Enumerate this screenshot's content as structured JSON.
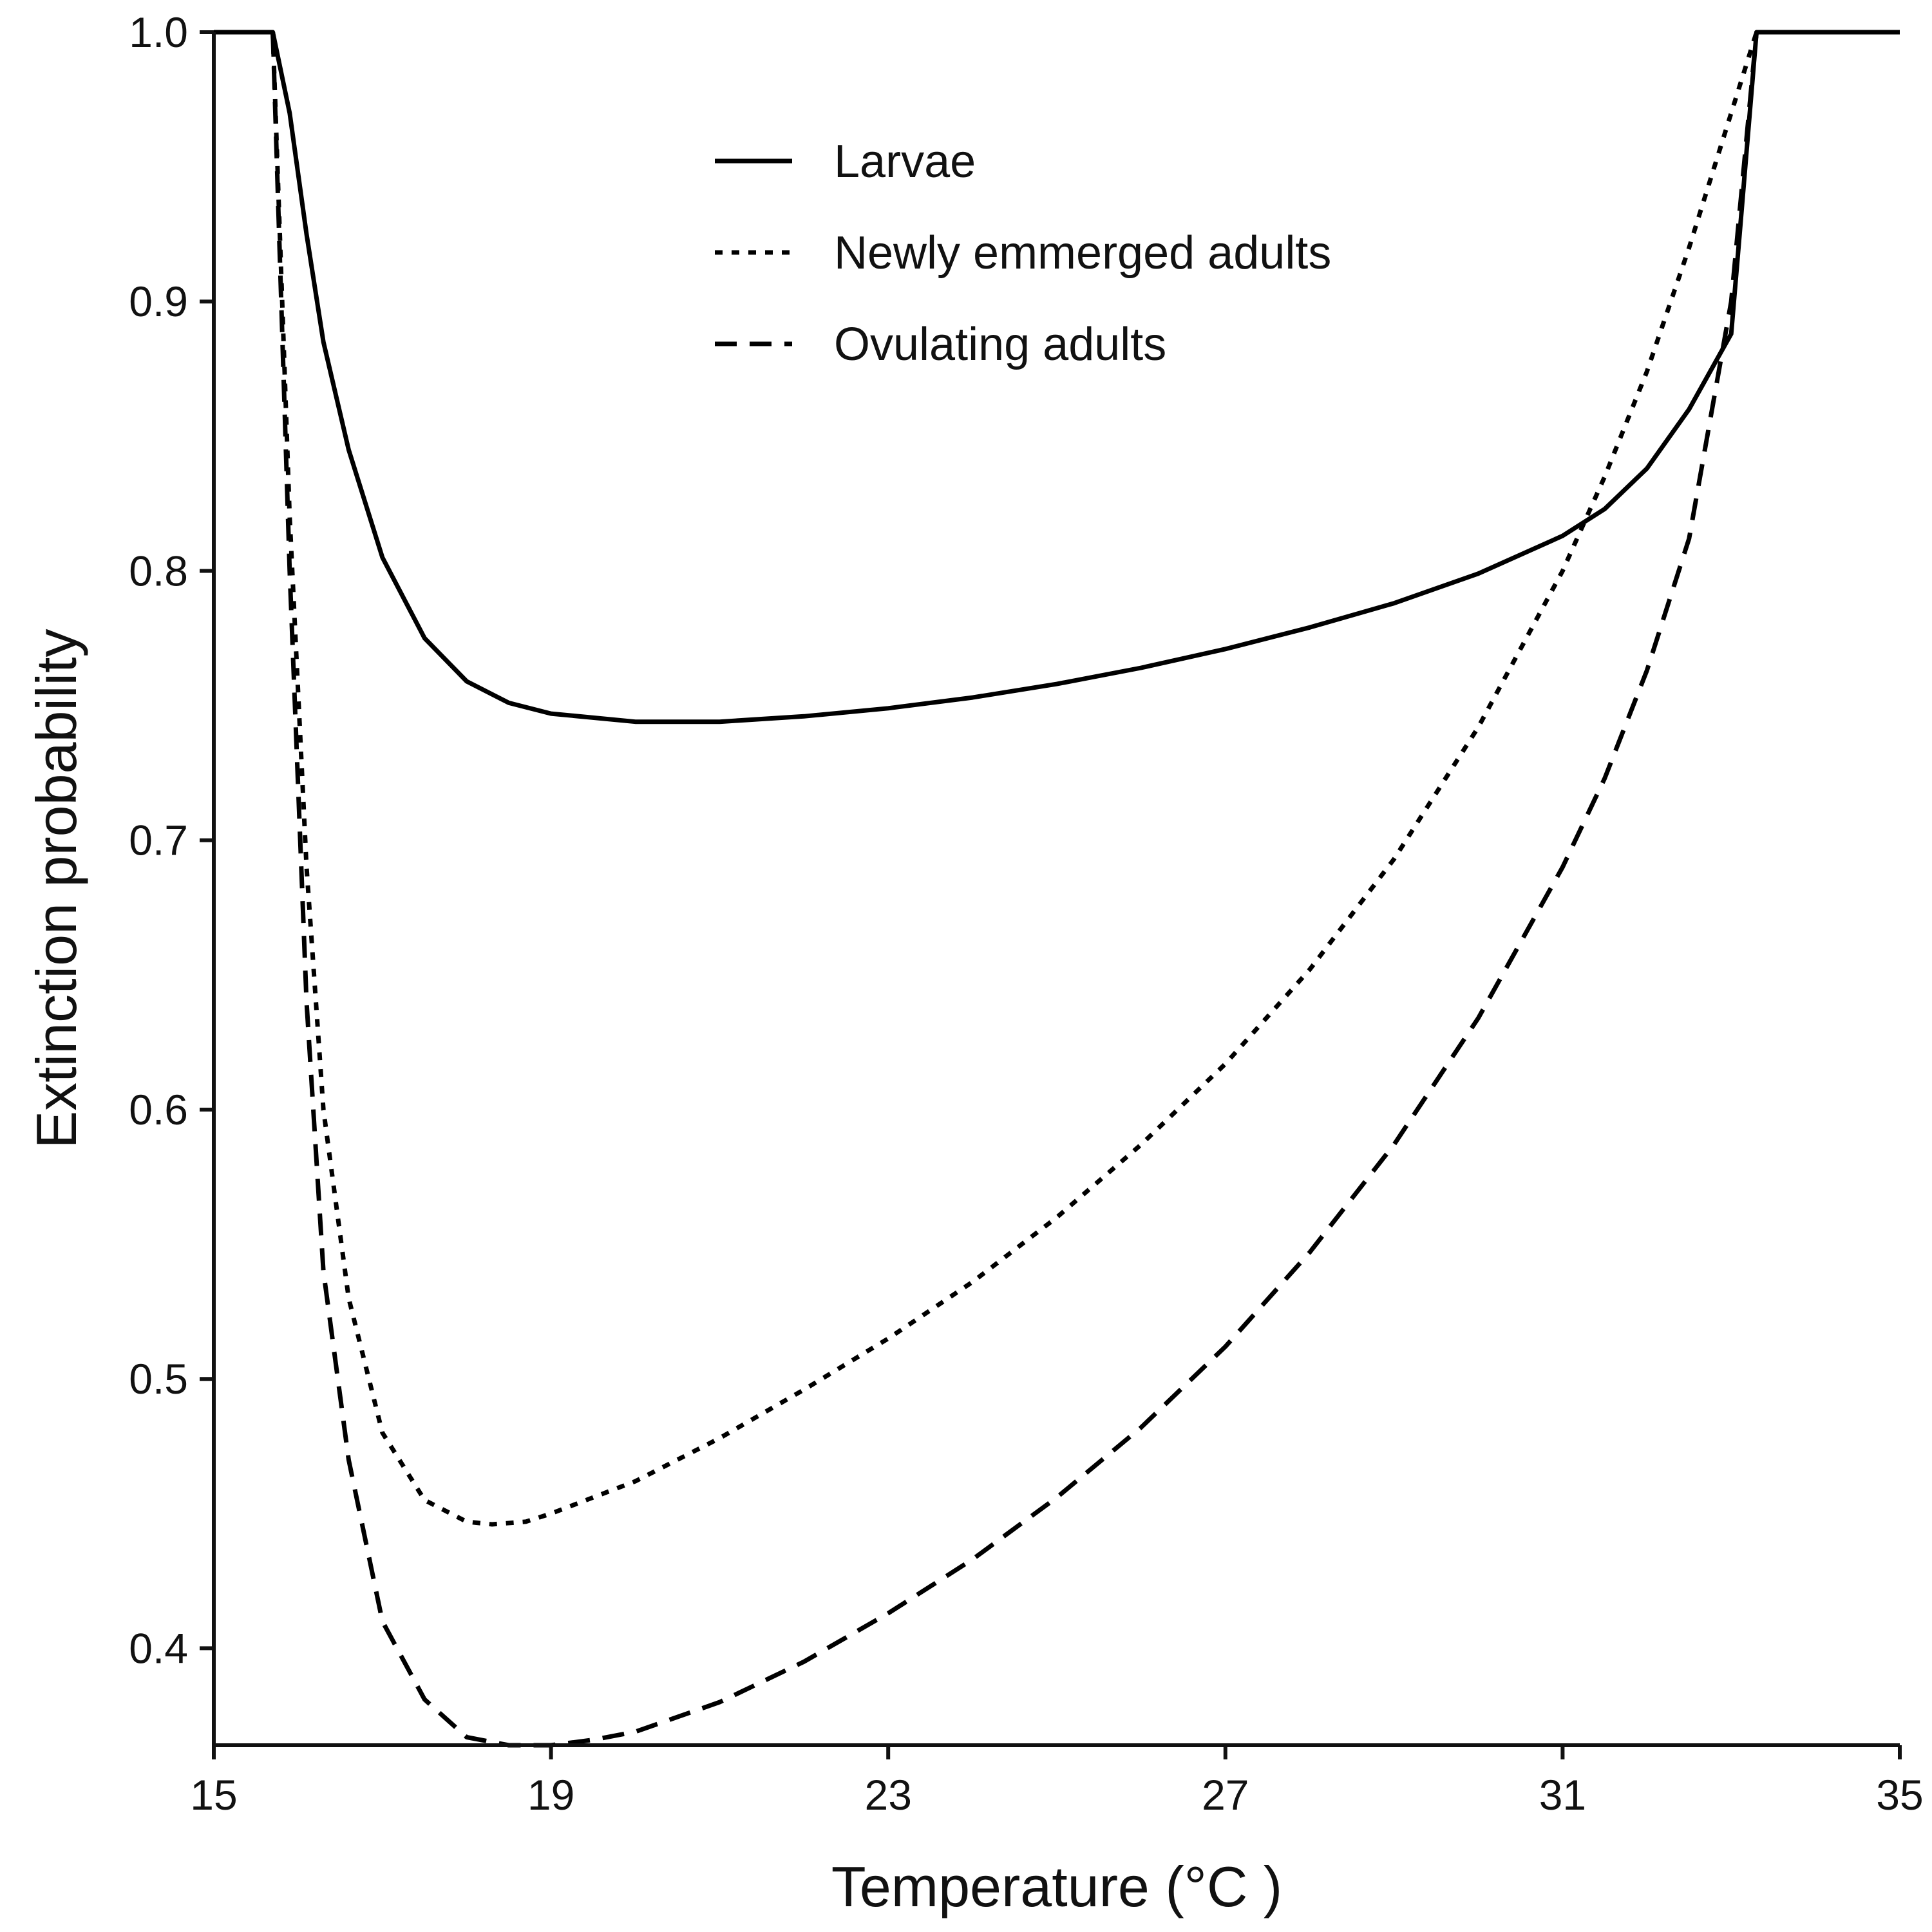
{
  "chart_data": {
    "type": "line",
    "xlabel": "Temperature (°C )",
    "ylabel": "Extinction probability",
    "xlim": [
      15,
      35
    ],
    "ylim": [
      0.364,
      1.0
    ],
    "xticks": [
      15,
      19,
      23,
      27,
      31,
      35
    ],
    "yticks": [
      0.4,
      0.5,
      0.6,
      0.7,
      0.8,
      0.9,
      1.0
    ],
    "xtick_labels": [
      "15",
      "19",
      "23",
      "27",
      "31",
      "35"
    ],
    "ytick_labels": [
      "0.4",
      "0.5",
      "0.6",
      "0.7",
      "0.8",
      "0.9",
      "1.0"
    ],
    "legend_position": "top-center",
    "series": [
      {
        "name": "Larvae",
        "dash": "solid",
        "x": [
          15,
          15.7,
          15.9,
          16.1,
          16.3,
          16.6,
          17.0,
          17.5,
          18.0,
          18.5,
          19.0,
          20.0,
          21.0,
          22.0,
          23.0,
          24.0,
          25.0,
          26.0,
          27.0,
          28.0,
          29.0,
          30.0,
          31.0,
          31.5,
          32.0,
          32.5,
          33.0,
          33.1,
          33.3,
          35
        ],
        "y": [
          1.0,
          1.0,
          0.97,
          0.925,
          0.885,
          0.845,
          0.805,
          0.775,
          0.759,
          0.751,
          0.747,
          0.744,
          0.744,
          0.746,
          0.749,
          0.753,
          0.758,
          0.764,
          0.771,
          0.779,
          0.788,
          0.799,
          0.813,
          0.823,
          0.838,
          0.86,
          0.888,
          0.925,
          1.0,
          1.0
        ]
      },
      {
        "name": "Newly emmerged adults",
        "dash": "dotted",
        "x": [
          15.7,
          15.9,
          16.1,
          16.3,
          16.6,
          17.0,
          17.5,
          18.0,
          18.3,
          18.7,
          19.0,
          20.0,
          21.0,
          22.0,
          23.0,
          24.0,
          25.0,
          26.0,
          27.0,
          28.0,
          29.0,
          30.0,
          31.0,
          31.5,
          32.0,
          32.5,
          33.0,
          33.3
        ],
        "y": [
          1.0,
          0.82,
          0.69,
          0.6,
          0.53,
          0.48,
          0.455,
          0.447,
          0.446,
          0.447,
          0.45,
          0.462,
          0.478,
          0.496,
          0.515,
          0.536,
          0.56,
          0.587,
          0.617,
          0.652,
          0.693,
          0.742,
          0.8,
          0.835,
          0.874,
          0.92,
          0.97,
          1.0
        ]
      },
      {
        "name": "Ovulating adults",
        "dash": "dashed",
        "x": [
          15.7,
          15.9,
          16.1,
          16.3,
          16.6,
          17.0,
          17.5,
          18.0,
          18.5,
          19.0,
          19.5,
          20.0,
          21.0,
          22.0,
          23.0,
          24.0,
          25.0,
          26.0,
          27.0,
          28.0,
          29.0,
          30.0,
          31.0,
          31.5,
          32.0,
          32.5,
          33.0,
          33.3
        ],
        "y": [
          1.0,
          0.8,
          0.64,
          0.54,
          0.47,
          0.41,
          0.381,
          0.367,
          0.364,
          0.364,
          0.366,
          0.369,
          0.38,
          0.395,
          0.413,
          0.433,
          0.456,
          0.482,
          0.512,
          0.547,
          0.587,
          0.634,
          0.69,
          0.723,
          0.763,
          0.812,
          0.9,
          1.0
        ]
      }
    ]
  }
}
